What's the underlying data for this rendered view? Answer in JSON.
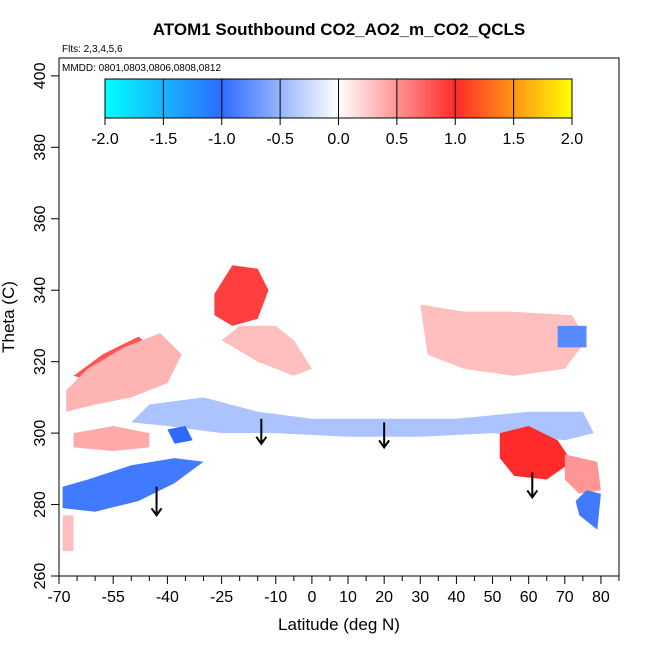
{
  "chart_data": {
    "type": "heatmap",
    "title": "ATOM1 Southbound CO2_AO2_m_CO2_QCLS",
    "subtitle_flights": "Flts: 2,3,4,5,6",
    "subtitle_dates": "MMDD: 0801,0803,0806,0808,0812",
    "xlabel": "Latitude (deg N)",
    "ylabel": "Theta (C)",
    "xlim": [
      -70,
      85
    ],
    "ylim": [
      260,
      405
    ],
    "x_ticks": [
      -70,
      -55,
      -40,
      -25,
      -10,
      0,
      10,
      20,
      30,
      40,
      50,
      60,
      70,
      80
    ],
    "x_tick_labels": [
      "-70",
      "-55",
      "-40",
      "-25",
      "-10",
      "0",
      "10",
      "20",
      "30",
      "40",
      "50",
      "60",
      "70",
      "80"
    ],
    "x_minor_ticks": [
      -65,
      -60,
      -50,
      -45,
      -35,
      -30,
      -20,
      -15,
      -5,
      5,
      15,
      25,
      35,
      45,
      55,
      65,
      75,
      85
    ],
    "y_ticks": [
      260,
      280,
      300,
      320,
      340,
      360,
      380,
      400
    ],
    "y_tick_labels": [
      "260",
      "280",
      "300",
      "320",
      "340",
      "360",
      "380",
      "400"
    ],
    "colorbar": {
      "range": [
        -2.0,
        2.0
      ],
      "ticks": [
        -2.0,
        -1.5,
        -1.0,
        -0.5,
        0.0,
        0.5,
        1.0,
        1.5,
        2.0
      ],
      "tick_labels": [
        "-2.0",
        "-1.5",
        "-1.0",
        "-0.5",
        "0.0",
        "0.5",
        "1.0",
        "1.5",
        "2.0"
      ],
      "colors": [
        "#00ffff",
        "#2d6bff",
        "#ffffff",
        "#ff2a2a",
        "#ffff00"
      ]
    },
    "arrows": [
      {
        "x": -43,
        "y_top": 285,
        "y_tip": 277
      },
      {
        "x": -14,
        "y_top": 304,
        "y_tip": 297
      },
      {
        "x": 20,
        "y_top": 303,
        "y_tip": 296
      },
      {
        "x": 61,
        "y_top": 289,
        "y_tip": 282
      }
    ],
    "regions": [
      {
        "label": "white background",
        "value": 0.0,
        "pts": [
          [
            -70,
            304
          ],
          [
            -63,
            316
          ],
          [
            -52,
            322
          ],
          [
            -38,
            328
          ],
          [
            -28,
            338
          ],
          [
            -20,
            346
          ],
          [
            -5,
            348
          ],
          [
            15,
            345
          ],
          [
            30,
            342
          ],
          [
            45,
            336
          ],
          [
            55,
            333
          ],
          [
            65,
            330
          ],
          [
            76,
            328
          ],
          [
            78,
            316
          ],
          [
            80,
            300
          ],
          [
            80,
            285
          ],
          [
            79,
            273
          ],
          [
            72,
            277
          ],
          [
            64,
            282
          ],
          [
            56,
            289
          ],
          [
            50,
            299
          ],
          [
            40,
            297
          ],
          [
            25,
            296
          ],
          [
            15,
            297
          ],
          [
            5,
            297
          ],
          [
            -5,
            298
          ],
          [
            -15,
            296
          ],
          [
            -25,
            292
          ],
          [
            -35,
            287
          ],
          [
            -45,
            281
          ],
          [
            -55,
            278
          ],
          [
            -64,
            279
          ],
          [
            -68,
            285
          ],
          [
            -70,
            295
          ]
        ]
      },
      {
        "label": "upper red patch",
        "value": 0.9,
        "pts": [
          [
            -27,
            339
          ],
          [
            -22,
            347
          ],
          [
            -15,
            346
          ],
          [
            -12,
            340
          ],
          [
            -15,
            332
          ],
          [
            -22,
            330
          ],
          [
            -27,
            333
          ]
        ]
      },
      {
        "label": "faint red band",
        "value": 0.3,
        "pts": [
          [
            -20,
            330
          ],
          [
            -10,
            330
          ],
          [
            -5,
            326
          ],
          [
            0,
            318
          ],
          [
            -5,
            316
          ],
          [
            -15,
            320
          ],
          [
            -25,
            326
          ]
        ]
      },
      {
        "label": "left red patch",
        "value": 0.8,
        "pts": [
          [
            -66,
            316
          ],
          [
            -58,
            322
          ],
          [
            -48,
            327
          ],
          [
            -42,
            322
          ],
          [
            -48,
            316
          ],
          [
            -58,
            314
          ]
        ]
      },
      {
        "label": "pink around left",
        "value": 0.35,
        "pts": [
          [
            -68,
            312
          ],
          [
            -62,
            318
          ],
          [
            -52,
            324
          ],
          [
            -42,
            328
          ],
          [
            -36,
            322
          ],
          [
            -40,
            314
          ],
          [
            -50,
            310
          ],
          [
            -60,
            308
          ],
          [
            -68,
            306
          ]
        ]
      },
      {
        "label": "right upper red",
        "value": 0.7,
        "pts": [
          [
            44,
            330
          ],
          [
            58,
            330
          ],
          [
            62,
            325
          ],
          [
            58,
            320
          ],
          [
            48,
            320
          ],
          [
            44,
            324
          ]
        ]
      },
      {
        "label": "right upper pink",
        "value": 0.3,
        "pts": [
          [
            30,
            336
          ],
          [
            42,
            334
          ],
          [
            55,
            334
          ],
          [
            72,
            333
          ],
          [
            76,
            326
          ],
          [
            70,
            318
          ],
          [
            56,
            316
          ],
          [
            42,
            318
          ],
          [
            32,
            322
          ]
        ]
      },
      {
        "label": "mid blue band",
        "value": -0.4,
        "pts": [
          [
            -45,
            308
          ],
          [
            -30,
            310
          ],
          [
            -15,
            306
          ],
          [
            0,
            304
          ],
          [
            20,
            304
          ],
          [
            40,
            304
          ],
          [
            60,
            306
          ],
          [
            75,
            306
          ],
          [
            78,
            300
          ],
          [
            70,
            298
          ],
          [
            50,
            300
          ],
          [
            30,
            299
          ],
          [
            10,
            299
          ],
          [
            -10,
            300
          ],
          [
            -25,
            300
          ],
          [
            -40,
            302
          ],
          [
            -50,
            303
          ]
        ]
      },
      {
        "label": "lower left blue",
        "value": -0.9,
        "pts": [
          [
            -69,
            285
          ],
          [
            -62,
            287
          ],
          [
            -50,
            291
          ],
          [
            -38,
            293
          ],
          [
            -30,
            292
          ],
          [
            -38,
            286
          ],
          [
            -48,
            281
          ],
          [
            -60,
            278
          ],
          [
            -69,
            279
          ]
        ]
      },
      {
        "label": "lower left pinkish",
        "value": 0.4,
        "pts": [
          [
            -66,
            300
          ],
          [
            -55,
            302
          ],
          [
            -45,
            300
          ],
          [
            -45,
            296
          ],
          [
            -55,
            295
          ],
          [
            -66,
            296
          ]
        ]
      },
      {
        "label": "small blue left",
        "value": -1.0,
        "pts": [
          [
            -40,
            301
          ],
          [
            -35,
            302
          ],
          [
            -33,
            298
          ],
          [
            -38,
            297
          ]
        ]
      },
      {
        "label": "right red blob",
        "value": 1.0,
        "pts": [
          [
            52,
            300
          ],
          [
            60,
            302
          ],
          [
            68,
            298
          ],
          [
            72,
            292
          ],
          [
            65,
            287
          ],
          [
            56,
            288
          ],
          [
            52,
            293
          ]
        ]
      },
      {
        "label": "right pink lower",
        "value": 0.5,
        "pts": [
          [
            70,
            294
          ],
          [
            79,
            292
          ],
          [
            80,
            284
          ],
          [
            74,
            283
          ],
          [
            70,
            287
          ]
        ]
      },
      {
        "label": "far right blue",
        "value": -0.9,
        "pts": [
          [
            76,
            284
          ],
          [
            80,
            283
          ],
          [
            79,
            273
          ],
          [
            74,
            277
          ],
          [
            73,
            281
          ]
        ]
      },
      {
        "label": "top-right blue",
        "value": -0.8,
        "pts": [
          [
            68,
            330
          ],
          [
            76,
            330
          ],
          [
            76,
            324
          ],
          [
            68,
            324
          ]
        ]
      },
      {
        "label": "bottom tail",
        "value": 0.3,
        "pts": [
          [
            -69,
            277
          ],
          [
            -66,
            277
          ],
          [
            -66,
            267
          ],
          [
            -69,
            267
          ]
        ]
      }
    ]
  }
}
